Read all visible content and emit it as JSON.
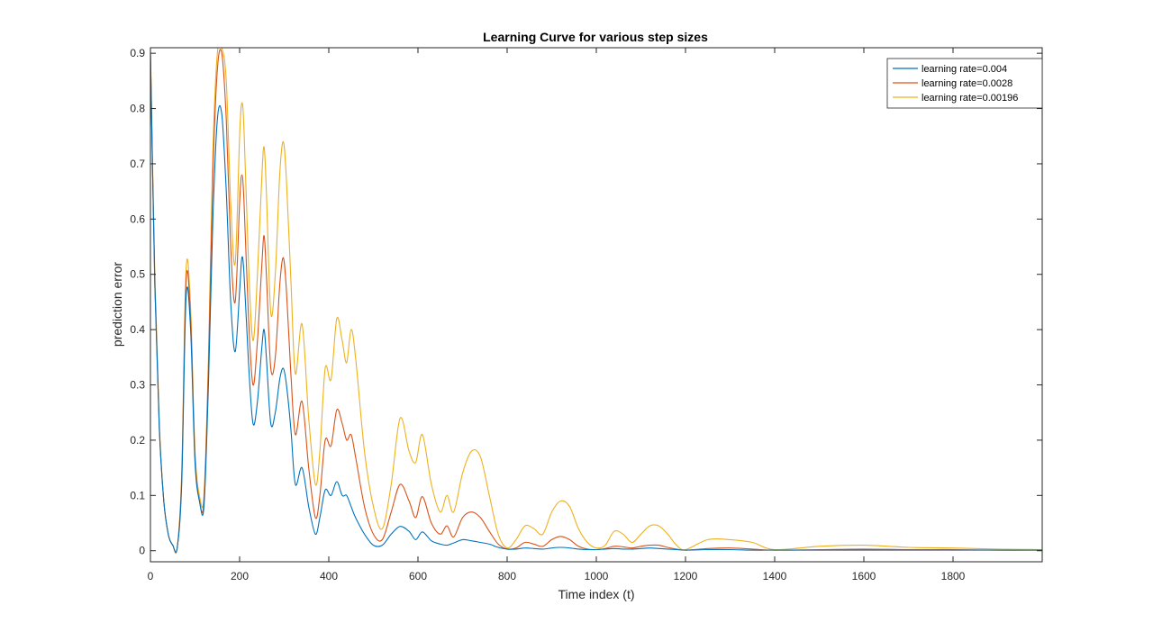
{
  "chart_data": {
    "type": "line",
    "title": "Learning Curve for various step sizes",
    "xlabel": "Time index (t)",
    "ylabel": "prediction error",
    "xlim": [
      0,
      2000
    ],
    "ylim": [
      -0.02,
      0.91
    ],
    "xticks": [
      0,
      200,
      400,
      600,
      800,
      1000,
      1200,
      1400,
      1600,
      1800
    ],
    "yticks": [
      0,
      0.1,
      0.2,
      0.3,
      0.4,
      0.5,
      0.6,
      0.7,
      0.8,
      0.9
    ],
    "xtick_labels": [
      "0",
      "200",
      "400",
      "600",
      "800",
      "1000",
      "1200",
      "1400",
      "1600",
      "1800"
    ],
    "ytick_labels": [
      "0",
      "0.1",
      "0.2",
      "0.3",
      "0.4",
      "0.5",
      "0.6",
      "0.7",
      "0.8",
      "0.9"
    ],
    "grid": false,
    "legend_position": "top-right",
    "series": [
      {
        "name": "learning rate=0.004",
        "color": "#0072BD",
        "x": [
          0,
          10,
          20,
          30,
          40,
          50,
          60,
          70,
          80,
          90,
          100,
          110,
          120,
          130,
          140,
          150,
          160,
          170,
          180,
          190,
          200,
          205,
          210,
          220,
          230,
          240,
          250,
          255,
          260,
          270,
          280,
          290,
          298,
          305,
          315,
          325,
          340,
          355,
          370,
          380,
          392,
          405,
          418,
          430,
          440,
          450,
          460,
          480,
          500,
          520,
          540,
          560,
          580,
          595,
          610,
          630,
          650,
          665,
          680,
          700,
          720,
          740,
          760,
          780,
          800,
          820,
          840,
          860,
          880,
          900,
          920,
          940,
          960,
          980,
          1000,
          1020,
          1040,
          1060,
          1080,
          1100,
          1120,
          1140,
          1160,
          1180,
          1200,
          1250,
          1300,
          1350,
          1400,
          1500,
          1600,
          1700,
          1800,
          1900,
          2000
        ],
        "y": [
          0.9,
          0.48,
          0.22,
          0.09,
          0.03,
          0.01,
          0.005,
          0.12,
          0.46,
          0.4,
          0.16,
          0.09,
          0.08,
          0.3,
          0.6,
          0.78,
          0.79,
          0.65,
          0.45,
          0.36,
          0.47,
          0.53,
          0.5,
          0.34,
          0.23,
          0.27,
          0.37,
          0.4,
          0.35,
          0.23,
          0.25,
          0.31,
          0.33,
          0.3,
          0.22,
          0.12,
          0.15,
          0.08,
          0.03,
          0.06,
          0.11,
          0.1,
          0.125,
          0.1,
          0.1,
          0.08,
          0.06,
          0.03,
          0.01,
          0.01,
          0.03,
          0.044,
          0.035,
          0.02,
          0.034,
          0.018,
          0.012,
          0.01,
          0.014,
          0.02,
          0.018,
          0.015,
          0.012,
          0.006,
          0.003,
          0.003,
          0.005,
          0.004,
          0.003,
          0.005,
          0.006,
          0.005,
          0.003,
          0.002,
          0.002,
          0.003,
          0.004,
          0.003,
          0.003,
          0.004,
          0.005,
          0.004,
          0.003,
          0.002,
          0.001,
          0.002,
          0.002,
          0.001,
          0.001,
          0.001,
          0.001,
          0.001,
          0.001,
          0.001,
          0.001
        ]
      },
      {
        "name": "learning rate=0.0028",
        "color": "#D95319",
        "x": [
          0,
          10,
          20,
          30,
          40,
          50,
          60,
          70,
          80,
          90,
          100,
          110,
          120,
          130,
          140,
          150,
          160,
          170,
          180,
          190,
          200,
          205,
          210,
          220,
          230,
          240,
          250,
          255,
          260,
          270,
          280,
          290,
          298,
          305,
          315,
          325,
          340,
          355,
          370,
          380,
          392,
          405,
          418,
          430,
          440,
          450,
          460,
          480,
          500,
          520,
          540,
          560,
          580,
          595,
          610,
          630,
          650,
          665,
          680,
          700,
          720,
          740,
          760,
          780,
          800,
          820,
          840,
          860,
          880,
          900,
          920,
          940,
          960,
          980,
          1000,
          1020,
          1040,
          1060,
          1080,
          1100,
          1120,
          1140,
          1160,
          1180,
          1200,
          1250,
          1300,
          1350,
          1400,
          1500,
          1600,
          1700,
          1800,
          1900,
          2000
        ],
        "y": [
          0.9,
          0.48,
          0.22,
          0.09,
          0.03,
          0.01,
          0.005,
          0.13,
          0.49,
          0.42,
          0.17,
          0.09,
          0.09,
          0.33,
          0.68,
          0.87,
          0.9,
          0.78,
          0.55,
          0.45,
          0.63,
          0.68,
          0.63,
          0.42,
          0.3,
          0.38,
          0.52,
          0.57,
          0.5,
          0.33,
          0.35,
          0.48,
          0.53,
          0.47,
          0.32,
          0.21,
          0.27,
          0.15,
          0.06,
          0.1,
          0.2,
          0.19,
          0.255,
          0.23,
          0.2,
          0.21,
          0.17,
          0.08,
          0.03,
          0.02,
          0.07,
          0.12,
          0.09,
          0.06,
          0.098,
          0.05,
          0.03,
          0.045,
          0.025,
          0.06,
          0.07,
          0.06,
          0.035,
          0.012,
          0.003,
          0.005,
          0.015,
          0.012,
          0.008,
          0.02,
          0.026,
          0.02,
          0.008,
          0.003,
          0.002,
          0.004,
          0.008,
          0.007,
          0.005,
          0.008,
          0.01,
          0.01,
          0.006,
          0.003,
          0.001,
          0.004,
          0.005,
          0.003,
          0.001,
          0.002,
          0.003,
          0.002,
          0.002,
          0.001,
          0.001
        ]
      },
      {
        "name": "learning rate=0.00196",
        "color": "#EDB120",
        "x": [
          0,
          10,
          20,
          30,
          40,
          50,
          60,
          70,
          80,
          90,
          100,
          110,
          120,
          130,
          140,
          150,
          160,
          170,
          180,
          190,
          200,
          205,
          210,
          220,
          230,
          240,
          250,
          255,
          260,
          270,
          280,
          290,
          298,
          305,
          315,
          325,
          340,
          355,
          370,
          380,
          392,
          405,
          418,
          430,
          440,
          450,
          460,
          480,
          500,
          520,
          540,
          560,
          580,
          595,
          610,
          630,
          650,
          665,
          680,
          700,
          720,
          740,
          760,
          780,
          800,
          820,
          840,
          860,
          880,
          900,
          920,
          940,
          960,
          980,
          1000,
          1020,
          1040,
          1060,
          1080,
          1100,
          1120,
          1140,
          1160,
          1180,
          1200,
          1250,
          1300,
          1350,
          1400,
          1500,
          1600,
          1700,
          1800,
          1900,
          2000
        ],
        "y": [
          0.91,
          0.5,
          0.23,
          0.09,
          0.03,
          0.01,
          0.005,
          0.14,
          0.51,
          0.44,
          0.18,
          0.1,
          0.1,
          0.35,
          0.72,
          0.9,
          0.91,
          0.85,
          0.63,
          0.52,
          0.75,
          0.81,
          0.76,
          0.52,
          0.38,
          0.5,
          0.68,
          0.73,
          0.65,
          0.43,
          0.5,
          0.68,
          0.74,
          0.67,
          0.49,
          0.32,
          0.41,
          0.24,
          0.12,
          0.18,
          0.33,
          0.31,
          0.42,
          0.38,
          0.34,
          0.4,
          0.35,
          0.18,
          0.08,
          0.04,
          0.12,
          0.24,
          0.18,
          0.16,
          0.21,
          0.12,
          0.07,
          0.1,
          0.07,
          0.14,
          0.18,
          0.17,
          0.1,
          0.03,
          0.005,
          0.02,
          0.045,
          0.04,
          0.03,
          0.07,
          0.09,
          0.08,
          0.04,
          0.015,
          0.005,
          0.01,
          0.035,
          0.03,
          0.015,
          0.03,
          0.045,
          0.045,
          0.03,
          0.01,
          0.002,
          0.02,
          0.02,
          0.015,
          0.002,
          0.008,
          0.01,
          0.006,
          0.005,
          0.003,
          0.002
        ]
      }
    ]
  }
}
